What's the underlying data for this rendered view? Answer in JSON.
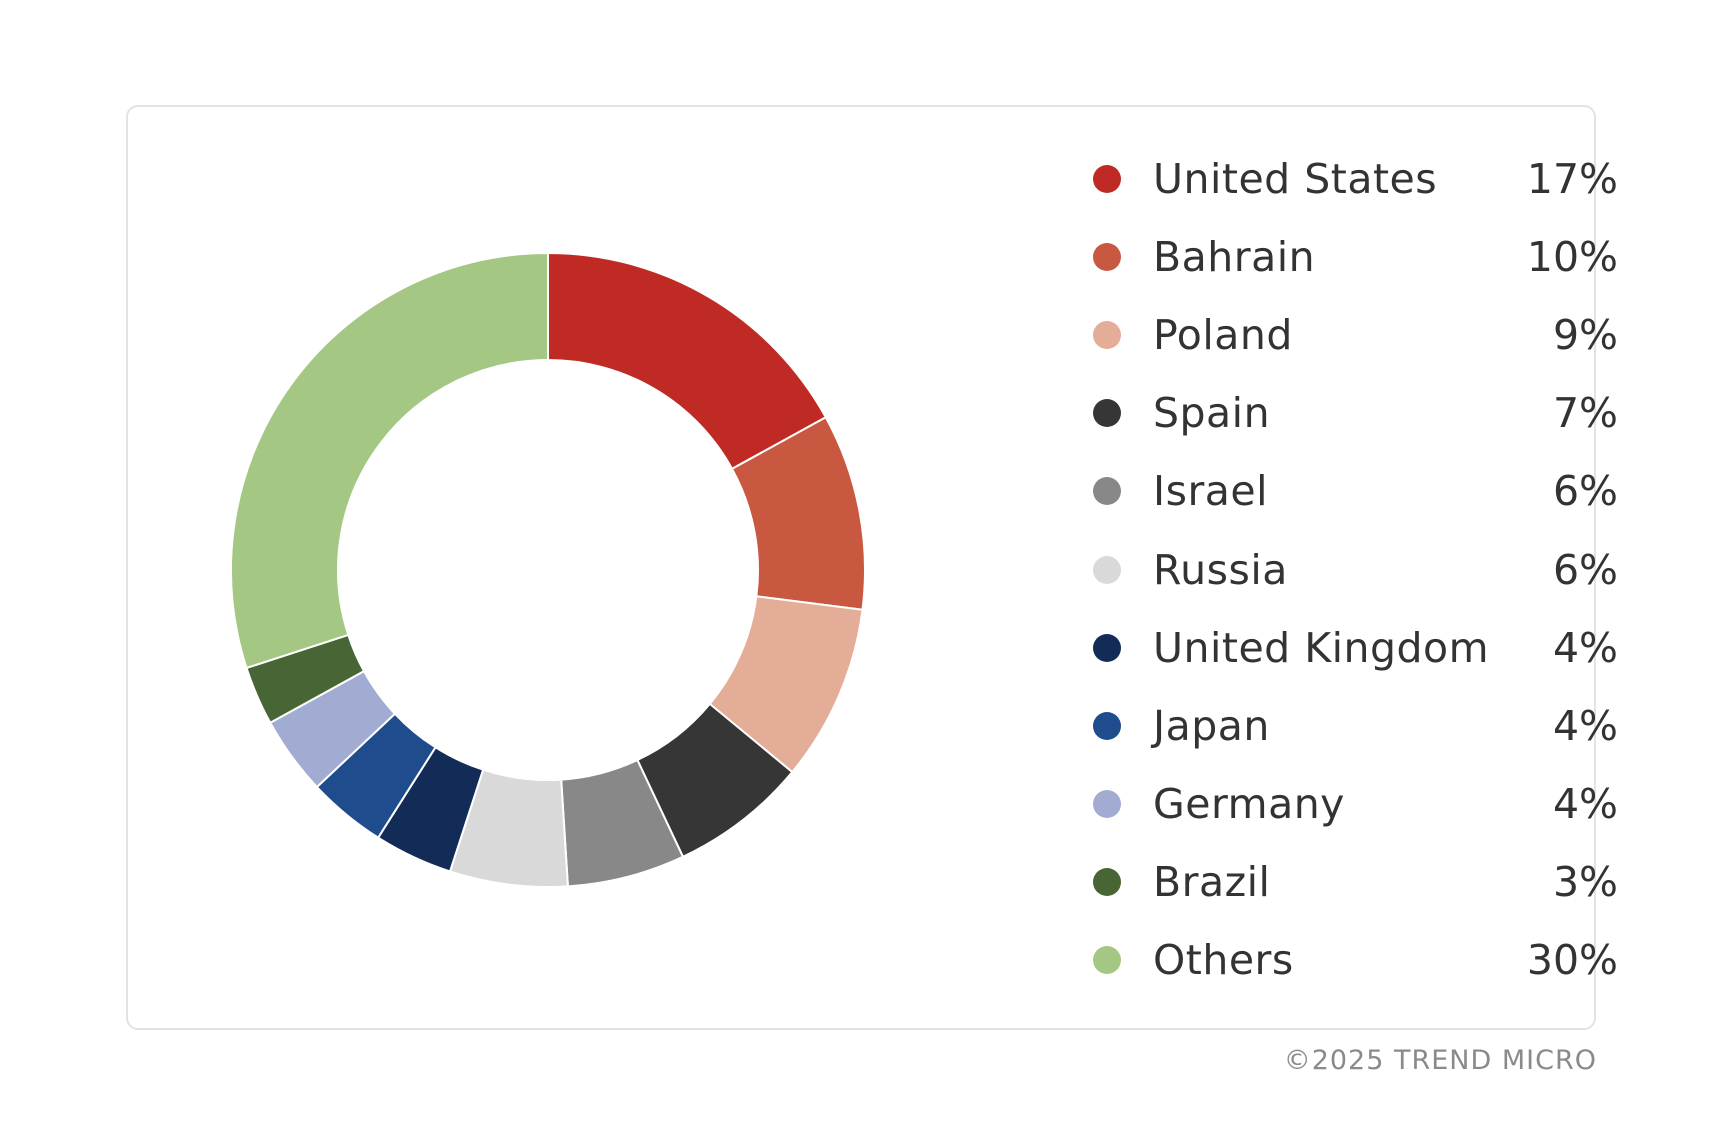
{
  "chart_data": {
    "type": "pie",
    "categories": [
      "United States",
      "Bahrain",
      "Poland",
      "Spain",
      "Israel",
      "Russia",
      "United Kingdom",
      "Japan",
      "Germany",
      "Brazil",
      "Others"
    ],
    "values": [
      17,
      10,
      9,
      7,
      6,
      6,
      4,
      4,
      4,
      3,
      30
    ],
    "value_labels": [
      "17%",
      "10%",
      "9%",
      "7%",
      "6%",
      "6%",
      "4%",
      "4%",
      "4%",
      "3%",
      "30%"
    ],
    "colors": [
      "#bf2b24",
      "#c95840",
      "#e4ad97",
      "#363636",
      "#888888",
      "#d9d9d9",
      "#132c57",
      "#1f4c8c",
      "#a2acd2",
      "#486535",
      "#a4c784"
    ],
    "donut": true,
    "legend_position": "right"
  },
  "footer": {
    "copyright": "©2025 TREND MICRO"
  }
}
